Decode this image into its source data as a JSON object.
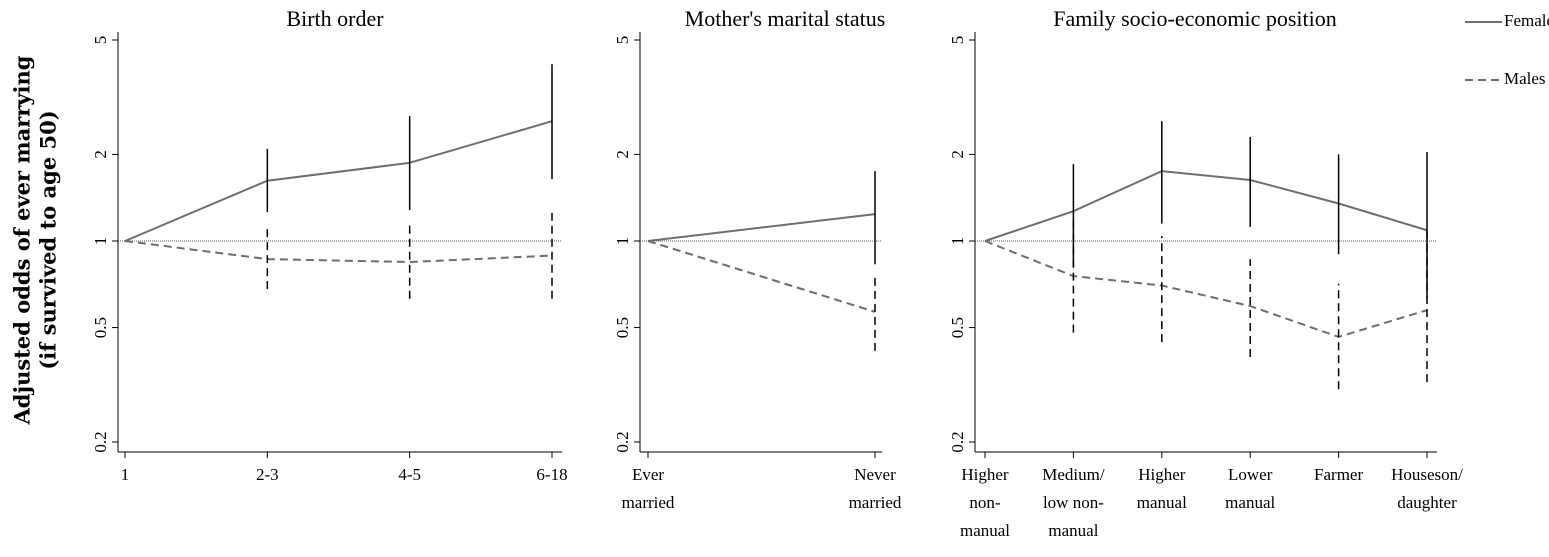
{
  "chart_data": [
    {
      "type": "line",
      "title": "Birth order",
      "ylabel": [
        "Adjusted odds of ever marrying",
        "(if survived to age 50)"
      ],
      "categories": [
        [
          "1"
        ],
        [
          "2-3"
        ],
        [
          "4-5"
        ],
        [
          "6-18"
        ]
      ],
      "log_scale": true,
      "ylim": [
        0.2,
        5
      ],
      "yticks": [
        0.2,
        0.5,
        1,
        2,
        5
      ],
      "hline": 1,
      "series": [
        {
          "name": "Females",
          "color": "#6e6e6e",
          "dash": false,
          "values": [
            1,
            1.62,
            1.87,
            2.61
          ],
          "lower": [
            null,
            1.26,
            1.28,
            1.64
          ],
          "upper": [
            null,
            2.09,
            2.72,
            4.12
          ]
        },
        {
          "name": "Males",
          "color": "#6e6e6e",
          "dash": true,
          "values": [
            1,
            0.865,
            0.845,
            0.89
          ],
          "lower": [
            null,
            0.68,
            0.63,
            0.63
          ],
          "upper": [
            null,
            1.1,
            1.15,
            1.29
          ]
        }
      ]
    },
    {
      "type": "line",
      "title": "Mother's marital status",
      "categories": [
        [
          "Ever",
          "married"
        ],
        [
          "Never",
          "married"
        ]
      ],
      "log_scale": true,
      "ylim": [
        0.2,
        5
      ],
      "yticks": [
        0.2,
        0.5,
        1,
        2,
        5
      ],
      "hline": 1,
      "series": [
        {
          "name": "Females",
          "color": "#6e6e6e",
          "dash": false,
          "values": [
            1,
            1.24
          ],
          "lower": [
            null,
            0.83
          ],
          "upper": [
            null,
            1.75
          ]
        },
        {
          "name": "Males",
          "color": "#6e6e6e",
          "dash": true,
          "values": [
            1,
            0.567
          ],
          "lower": [
            null,
            0.415
          ],
          "upper": [
            null,
            0.75
          ]
        }
      ]
    },
    {
      "type": "line",
      "title": "Family socio-economic position",
      "categories": [
        [
          "Higher",
          "non-",
          "manual"
        ],
        [
          "Medium/",
          "low non-",
          "manual"
        ],
        [
          "Higher",
          "manual"
        ],
        [
          "Lower",
          "manual"
        ],
        [
          "Farmer"
        ],
        [
          "Houseson/",
          "daughter"
        ]
      ],
      "log_scale": true,
      "ylim": [
        0.2,
        5
      ],
      "yticks": [
        0.2,
        0.5,
        1,
        2,
        5
      ],
      "hline": 1,
      "series": [
        {
          "name": "Females",
          "color": "#6e6e6e",
          "dash": false,
          "values": [
            1,
            1.27,
            1.75,
            1.63,
            1.35,
            1.09
          ],
          "lower": [
            null,
            0.81,
            1.15,
            1.12,
            0.9,
            0.63
          ],
          "upper": [
            null,
            1.85,
            2.61,
            2.3,
            2.0,
            2.04
          ]
        },
        {
          "name": "Males",
          "color": "#6e6e6e",
          "dash": true,
          "values": [
            1,
            0.755,
            0.7,
            0.594,
            0.464,
            0.575
          ],
          "lower": [
            null,
            0.48,
            0.445,
            0.395,
            0.305,
            0.323
          ],
          "upper": [
            null,
            1.21,
            1.04,
            0.865,
            0.71,
            1.08
          ]
        }
      ]
    }
  ]
}
